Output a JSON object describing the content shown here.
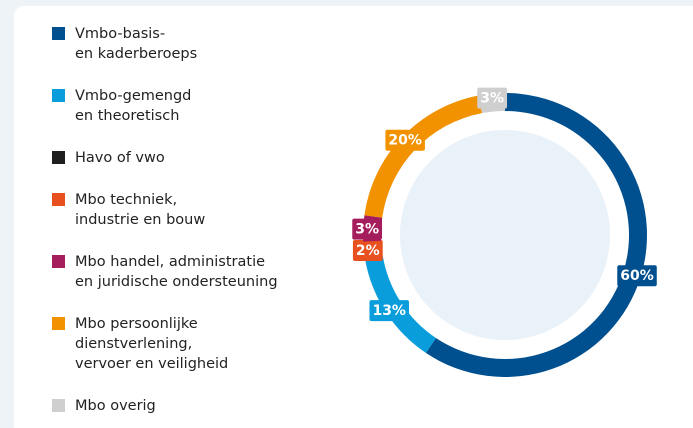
{
  "chart_data": {
    "type": "donut",
    "series": [
      {
        "name": "Vmbo-basis-\nen kaderberoeps",
        "color": "#00508f"
      },
      {
        "name": "Vmbo-gemengd\nen theoretisch",
        "color": "#0a9ddb"
      },
      {
        "name": "Havo of vwo",
        "color": "#1f1f1f"
      },
      {
        "name": "Mbo techniek,\nindustrie en bouw",
        "color": "#e9501f"
      },
      {
        "name": "Mbo handel, administratie\nen juridische ondersteuning",
        "color": "#a51d5c"
      },
      {
        "name": "Mbo persoonlijke\ndienstverlening,\nvervoer en veiligheid",
        "color": "#f29200"
      },
      {
        "name": "Mbo overig",
        "color": "#cfcfcf"
      }
    ],
    "values": [
      60,
      13,
      0,
      2,
      3,
      20,
      3
    ],
    "value_labels": [
      "60%",
      "13%",
      null,
      "2%",
      "3%",
      "20%",
      "3%"
    ]
  }
}
